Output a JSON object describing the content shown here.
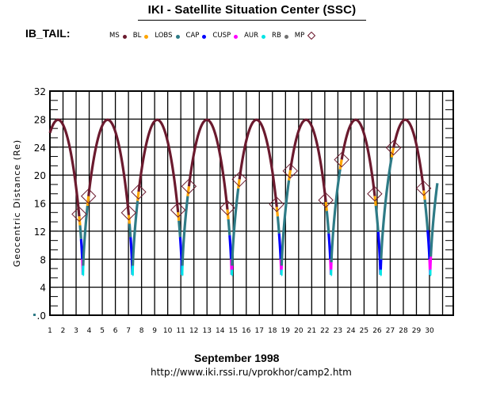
{
  "header": {
    "title": "IKI - Satellite Situation Center (SSC)",
    "region_label": "IB_TAIL:"
  },
  "legend": [
    {
      "label": "MS",
      "color": "#6b1a2e",
      "symbol": "dot"
    },
    {
      "label": "BL",
      "color": "#ffa500",
      "symbol": "dot"
    },
    {
      "label": "LOBS",
      "color": "#2e7b86",
      "symbol": "dot"
    },
    {
      "label": "CAP",
      "color": "#0000ff",
      "symbol": "dot"
    },
    {
      "label": "CUSP",
      "color": "#ff00ff",
      "symbol": "dot"
    },
    {
      "label": "AUR",
      "color": "#00e5e5",
      "symbol": "dot"
    },
    {
      "label": "RB",
      "color": "#707070",
      "symbol": "dot"
    },
    {
      "label": "MP",
      "color": "#6b1a2e",
      "symbol": "diamond"
    }
  ],
  "footer": {
    "month": "September    1998",
    "url": "http://www.iki.rssi.ru/vprokhor/camp2.htm"
  },
  "chart_data": {
    "type": "line",
    "title": "IKI - Satellite Situation Center (SSC)",
    "xlabel": "September 1998",
    "ylabel": "Geocentric Distance (Re)",
    "xlim": [
      1,
      31
    ],
    "ylim": [
      0,
      32
    ],
    "x_ticks": [
      "1",
      "2",
      "3",
      "4",
      "5",
      "6",
      "7",
      "8",
      "9",
      "10",
      "11",
      "12",
      "13",
      "14",
      "15",
      "16",
      "17",
      "18",
      "19",
      "20",
      "21",
      "22",
      "23",
      "24",
      "25",
      "26",
      "27",
      "28",
      "29",
      "30"
    ],
    "y_ticks": [
      ".0",
      "4",
      "8",
      "12",
      "16",
      "20",
      "24",
      "28",
      "32"
    ],
    "y_tick_values": [
      0,
      4,
      8,
      12,
      16,
      20,
      24,
      28,
      32
    ],
    "grid": true,
    "orbit": {
      "period_days": 3.79,
      "first_apogee_day": 1.62,
      "apogee_re": 27.9,
      "perigee_re": 5.0,
      "end_day": 30.6
    },
    "series_colors": {
      "MS": "#6b1a2e",
      "BL": "#ffa500",
      "LOBS": "#2e7b86",
      "CAP": "#0000ff",
      "CUSP": "#ff00ff",
      "AUR": "#00e5e5",
      "RB": "#707070"
    },
    "passes": [
      {
        "perigee_day": 3.5,
        "mp_in": 14.2,
        "mp_out": 17.0,
        "cusp": true,
        "cap_top": 11.0
      },
      {
        "perigee_day": 7.3,
        "mp_in": 14.4,
        "mp_out": 17.6,
        "cusp": false,
        "cap_top": 11.2
      },
      {
        "perigee_day": 11.1,
        "mp_in": 14.8,
        "mp_out": 18.4,
        "cusp": false,
        "cap_top": 11.4
      },
      {
        "perigee_day": 14.9,
        "mp_in": 15.1,
        "mp_out": 19.4,
        "cusp": true,
        "cap_top": 11.6
      },
      {
        "perigee_day": 18.7,
        "mp_in": 15.6,
        "mp_out": 20.6,
        "cusp": true,
        "cap_top": 11.7
      },
      {
        "perigee_day": 22.5,
        "mp_in": 16.2,
        "mp_out": 22.2,
        "cusp": true,
        "cap_top": 11.8
      },
      {
        "perigee_day": 26.3,
        "mp_in": 17.1,
        "mp_out": 23.9,
        "cusp": false,
        "cap_top": 12.0
      },
      {
        "perigee_day": 30.1,
        "mp_in": 17.9,
        "mp_out": null,
        "cusp": true,
        "cap_top": 12.2
      }
    ],
    "legend_position": "top"
  }
}
